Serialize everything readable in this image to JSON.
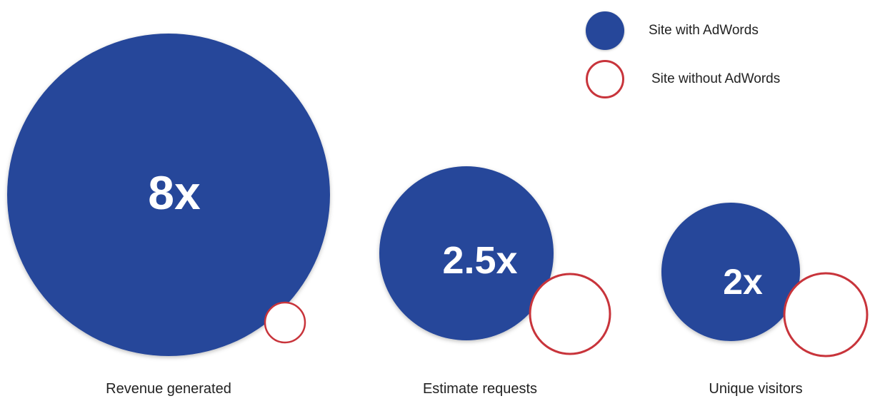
{
  "chart_data": {
    "type": "bubble",
    "categories": [
      "Revenue generated",
      "Estimate requests",
      "Unique visitors"
    ],
    "series": [
      {
        "name": "Site with AdWords",
        "values": [
          8,
          2.5,
          2
        ],
        "labels": [
          "8x",
          "2.5x",
          "2x"
        ]
      },
      {
        "name": "Site without AdWords",
        "values": [
          1,
          1,
          1
        ]
      }
    ],
    "legend": "top-right",
    "colors": {
      "with": "#26479a",
      "without_fill": "#ffffff",
      "without_stroke": "#c8343b"
    }
  },
  "legend": {
    "with_label": "Site with AdWords",
    "without_label": "Site without AdWords"
  }
}
